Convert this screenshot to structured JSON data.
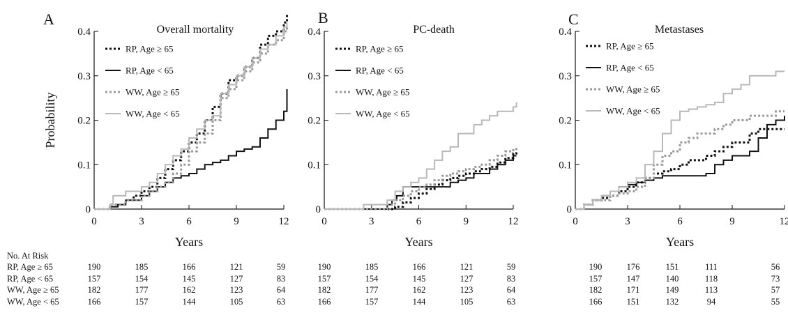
{
  "chart_data": [
    {
      "type": "line",
      "panel": "A",
      "title": "Overall mortality",
      "xlabel": "Years",
      "ylabel": "Probability",
      "xlim": [
        0,
        12
      ],
      "ylim": [
        0,
        0.4
      ],
      "x_ticks": [
        0,
        3,
        6,
        9,
        12
      ],
      "y_ticks": [
        0,
        0.1,
        0.2,
        0.3,
        0.4
      ],
      "y_tick_labels": [
        "0",
        "0.1",
        "0.2",
        "0.3",
        "0.4"
      ],
      "legend_position": "top-left",
      "series": [
        {
          "name": "RP, Age ≥ 65",
          "style": "dotted-black",
          "x": [
            0,
            1,
            2,
            2.5,
            3,
            3.5,
            4,
            4.5,
            5,
            5.5,
            6,
            6.5,
            7,
            7.5,
            8,
            8.5,
            9,
            9.5,
            10,
            10.5,
            11,
            11.5,
            12,
            12.2
          ],
          "y": [
            0,
            0.01,
            0.02,
            0.03,
            0.04,
            0.05,
            0.07,
            0.09,
            0.11,
            0.13,
            0.15,
            0.17,
            0.2,
            0.23,
            0.26,
            0.29,
            0.3,
            0.32,
            0.34,
            0.37,
            0.39,
            0.4,
            0.42,
            0.44
          ]
        },
        {
          "name": "RP, Age < 65",
          "style": "solid-black",
          "x": [
            0,
            1,
            1.5,
            2,
            3,
            3.5,
            4,
            4.5,
            5,
            5.5,
            6,
            6.5,
            7,
            7.5,
            8,
            8.5,
            9,
            9.5,
            10,
            10.5,
            11,
            11.5,
            12,
            12.2
          ],
          "y": [
            0,
            0.005,
            0.01,
            0.02,
            0.03,
            0.04,
            0.05,
            0.06,
            0.07,
            0.075,
            0.08,
            0.09,
            0.1,
            0.105,
            0.11,
            0.12,
            0.13,
            0.135,
            0.14,
            0.16,
            0.18,
            0.2,
            0.22,
            0.27
          ]
        },
        {
          "name": "WW, Age ≥ 65",
          "style": "dotted-gray",
          "x": [
            0,
            1,
            2,
            3,
            3.5,
            4,
            4.5,
            5,
            5.5,
            6,
            6.5,
            7,
            7.5,
            8,
            8.5,
            9,
            9.5,
            10,
            10.5,
            11,
            11.5,
            12,
            12.2
          ],
          "y": [
            0,
            0.01,
            0.02,
            0.03,
            0.04,
            0.05,
            0.06,
            0.08,
            0.1,
            0.13,
            0.15,
            0.17,
            0.2,
            0.25,
            0.27,
            0.29,
            0.31,
            0.33,
            0.35,
            0.37,
            0.38,
            0.4,
            0.41
          ]
        },
        {
          "name": "WW, Age < 65",
          "style": "solid-gray",
          "x": [
            0,
            1,
            1.2,
            2,
            3,
            3.5,
            4,
            4.5,
            5,
            5.5,
            6,
            6.5,
            7,
            7.5,
            8,
            8.5,
            9,
            9.5,
            10,
            10.5,
            11,
            11.5,
            12,
            12.2
          ],
          "y": [
            0,
            0.01,
            0.03,
            0.04,
            0.05,
            0.06,
            0.08,
            0.1,
            0.12,
            0.135,
            0.16,
            0.18,
            0.2,
            0.21,
            0.26,
            0.28,
            0.3,
            0.32,
            0.34,
            0.36,
            0.37,
            0.39,
            0.41,
            0.42
          ]
        }
      ]
    },
    {
      "type": "line",
      "panel": "B",
      "title": "PC-death",
      "xlabel": "Years",
      "ylabel": "",
      "xlim": [
        0,
        12
      ],
      "ylim": [
        0,
        0.4
      ],
      "x_ticks": [
        0,
        3,
        6,
        9,
        12
      ],
      "y_ticks": [
        0,
        0.1,
        0.2,
        0.3,
        0.4
      ],
      "y_tick_labels": [
        "0",
        "0.1",
        "0.2",
        "0.3",
        "0.4"
      ],
      "legend_position": "top-left",
      "series": [
        {
          "name": "RP, Age ≥ 65",
          "style": "dotted-black",
          "x": [
            0,
            4,
            4.5,
            5,
            5.5,
            6,
            6.5,
            7,
            7.5,
            8,
            8.5,
            9,
            9.5,
            10,
            10.5,
            11,
            11.5,
            12,
            12.2
          ],
          "y": [
            0,
            0,
            0.005,
            0.015,
            0.025,
            0.035,
            0.045,
            0.055,
            0.065,
            0.07,
            0.075,
            0.08,
            0.085,
            0.09,
            0.095,
            0.105,
            0.115,
            0.125,
            0.13
          ]
        },
        {
          "name": "RP, Age < 65",
          "style": "solid-black",
          "x": [
            0,
            3.5,
            4,
            4.3,
            4.6,
            5,
            6,
            7,
            8,
            8.5,
            9,
            9.5,
            10,
            10.5,
            11,
            11.5,
            12,
            12.2
          ],
          "y": [
            0,
            0,
            0.01,
            0.02,
            0.03,
            0.05,
            0.05,
            0.05,
            0.06,
            0.065,
            0.07,
            0.08,
            0.08,
            0.09,
            0.1,
            0.11,
            0.12,
            0.12
          ]
        },
        {
          "name": "WW, Age ≥ 65",
          "style": "dotted-gray",
          "x": [
            0,
            3,
            4,
            4.5,
            5,
            5.5,
            6,
            6.5,
            7,
            7.5,
            8,
            8.5,
            9,
            9.5,
            10,
            10.5,
            11,
            11.5,
            12,
            12.2
          ],
          "y": [
            0,
            0,
            0.01,
            0.02,
            0.03,
            0.04,
            0.05,
            0.055,
            0.065,
            0.075,
            0.08,
            0.085,
            0.09,
            0.095,
            0.1,
            0.11,
            0.12,
            0.13,
            0.135,
            0.14
          ]
        },
        {
          "name": "WW, Age < 65",
          "style": "solid-gray",
          "x": [
            0,
            2,
            2.5,
            3,
            4,
            4.5,
            5,
            5.5,
            6,
            6.5,
            7,
            7.5,
            8,
            8.5,
            9,
            9.5,
            10,
            10.5,
            11,
            11.5,
            12,
            12.2
          ],
          "y": [
            0,
            0,
            0.01,
            0.01,
            0.02,
            0.04,
            0.05,
            0.06,
            0.07,
            0.09,
            0.11,
            0.13,
            0.14,
            0.17,
            0.17,
            0.19,
            0.2,
            0.21,
            0.22,
            0.22,
            0.23,
            0.24
          ]
        }
      ]
    },
    {
      "type": "line",
      "panel": "C",
      "title": "Metastases",
      "xlabel": "Years",
      "ylabel": "",
      "xlim": [
        0,
        12
      ],
      "ylim": [
        0,
        0.4
      ],
      "x_ticks": [
        0,
        3,
        6,
        9,
        12
      ],
      "y_ticks": [
        0,
        0.1,
        0.2,
        0.3,
        0.4
      ],
      "y_tick_labels": [
        "0",
        "0.1",
        "0.2",
        "0.3",
        "0.4"
      ],
      "legend_position": "top-left",
      "series": [
        {
          "name": "RP, Age ≥ 65",
          "style": "dotted-black",
          "x": [
            0,
            0.5,
            1,
            1.5,
            2,
            2.5,
            3,
            3.5,
            4,
            4.5,
            5,
            5.5,
            6,
            6.5,
            7,
            7.5,
            8,
            8.5,
            9,
            9.5,
            10,
            10.5,
            11,
            11.5,
            12
          ],
          "y": [
            0,
            0.01,
            0.02,
            0.025,
            0.03,
            0.04,
            0.05,
            0.06,
            0.07,
            0.08,
            0.085,
            0.09,
            0.1,
            0.11,
            0.11,
            0.12,
            0.13,
            0.14,
            0.15,
            0.15,
            0.17,
            0.18,
            0.18,
            0.18,
            0.18
          ]
        },
        {
          "name": "RP, Age < 65",
          "style": "solid-black",
          "x": [
            0,
            0.5,
            1,
            1.5,
            2,
            2.5,
            3,
            3.5,
            4,
            4.5,
            5,
            6,
            7,
            7.5,
            8,
            8.5,
            9,
            9.5,
            10,
            10.5,
            11,
            11.5,
            12
          ],
          "y": [
            0,
            0.01,
            0.02,
            0.03,
            0.04,
            0.05,
            0.055,
            0.06,
            0.065,
            0.07,
            0.075,
            0.075,
            0.075,
            0.08,
            0.1,
            0.11,
            0.12,
            0.12,
            0.13,
            0.16,
            0.19,
            0.2,
            0.21
          ]
        },
        {
          "name": "WW, Age ≥ 65",
          "style": "dotted-gray",
          "x": [
            0,
            0.5,
            1,
            2,
            2.5,
            3,
            3.5,
            4,
            4.5,
            5,
            5.5,
            6,
            6.5,
            7,
            7.5,
            8,
            8.5,
            9,
            9.5,
            10,
            10.5,
            11,
            11.5,
            12
          ],
          "y": [
            0,
            0.01,
            0.02,
            0.03,
            0.035,
            0.04,
            0.05,
            0.07,
            0.1,
            0.12,
            0.13,
            0.15,
            0.16,
            0.17,
            0.17,
            0.18,
            0.19,
            0.2,
            0.2,
            0.21,
            0.21,
            0.21,
            0.22,
            0.22
          ]
        },
        {
          "name": "WW, Age < 65",
          "style": "solid-gray",
          "x": [
            0,
            0.5,
            1,
            1.5,
            2,
            2.5,
            3,
            3.5,
            4,
            4.5,
            5,
            5.5,
            6,
            6.5,
            7,
            7.5,
            8,
            8.5,
            9,
            9.5,
            10,
            10.5,
            11,
            11.5,
            12
          ],
          "y": [
            0,
            0.01,
            0.02,
            0.03,
            0.04,
            0.05,
            0.06,
            0.07,
            0.1,
            0.13,
            0.17,
            0.2,
            0.22,
            0.225,
            0.23,
            0.235,
            0.24,
            0.26,
            0.27,
            0.28,
            0.3,
            0.3,
            0.3,
            0.31,
            0.31
          ]
        }
      ]
    }
  ],
  "risk_table": {
    "header": "No. At Risk",
    "row_labels": [
      "RP, Age ≥ 65",
      "RP, Age < 65",
      "WW, Age ≥ 65",
      "WW, Age < 65"
    ],
    "panels": [
      [
        [
          "190",
          "185",
          "166",
          "121",
          "59"
        ],
        [
          "157",
          "154",
          "145",
          "127",
          "83"
        ],
        [
          "182",
          "177",
          "162",
          "123",
          "64"
        ],
        [
          "166",
          "157",
          "144",
          "105",
          "63"
        ]
      ],
      [
        [
          "190",
          "185",
          "166",
          "121",
          "59"
        ],
        [
          "157",
          "154",
          "145",
          "127",
          "83"
        ],
        [
          "182",
          "177",
          "162",
          "123",
          "64"
        ],
        [
          "166",
          "157",
          "144",
          "105",
          "63"
        ]
      ],
      [
        [
          "190",
          "176",
          "151",
          "111",
          "56"
        ],
        [
          "157",
          "147",
          "140",
          "118",
          "73"
        ],
        [
          "182",
          "171",
          "149",
          "113",
          "57"
        ],
        [
          "166",
          "151",
          "132",
          "94",
          "55"
        ]
      ]
    ]
  }
}
